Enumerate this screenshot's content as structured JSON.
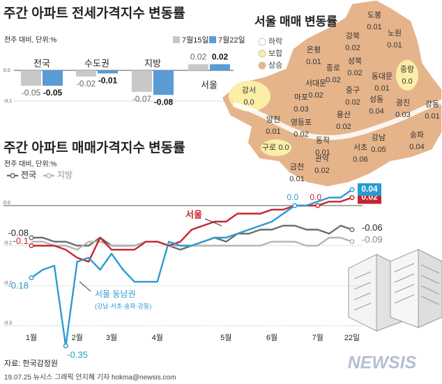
{
  "chart_data": [
    {
      "type": "bar",
      "title": "주간 아파트 전세가격지수 변동률",
      "subtitle": "전주 대비, 단위:%",
      "categories": [
        "전국",
        "수도권",
        "지방",
        "서울"
      ],
      "series": [
        {
          "name": "7월15일",
          "color": "#c8c8c8",
          "values": [
            -0.05,
            -0.02,
            -0.07,
            0.02
          ]
        },
        {
          "name": "7월22일",
          "color": "#5b9bd5",
          "values": [
            -0.05,
            -0.01,
            -0.08,
            0.02
          ]
        }
      ],
      "ylim": [
        -0.1,
        0.02
      ],
      "yticks": [
        {
          "value": 0,
          "label": "0.0"
        },
        -0.1
      ]
    },
    {
      "type": "line",
      "title": "주간 아파트 매매가격지수 변동률",
      "subtitle": "전주 대비, 단위:%",
      "categories": [
        "1월",
        null,
        null,
        null,
        "2월",
        null,
        null,
        "3월",
        null,
        null,
        null,
        "4월",
        null,
        null,
        null,
        null,
        null,
        "5월",
        null,
        null,
        null,
        "6월",
        null,
        null,
        null,
        "7월",
        null,
        null,
        "22일"
      ],
      "series": [
        {
          "name": "전국",
          "color": "#6d6d6d",
          "legend": true,
          "values": [
            -0.08,
            -0.08,
            -0.09,
            -0.09,
            -0.1,
            -0.1,
            -0.08,
            -0.1,
            -0.1,
            -0.1,
            -0.09,
            -0.09,
            -0.1,
            -0.11,
            -0.1,
            -0.09,
            -0.08,
            -0.09,
            -0.07,
            -0.07,
            -0.06,
            -0.06,
            -0.05,
            -0.05,
            -0.06,
            -0.06,
            -0.07,
            -0.05,
            -0.06
          ],
          "value_labels": [
            "-0.08",
            null,
            null,
            null,
            null,
            null,
            null,
            null,
            null,
            null,
            null,
            null,
            null,
            null,
            null,
            null,
            null,
            null,
            null,
            null,
            null,
            null,
            null,
            null,
            null,
            null,
            null,
            null,
            "-0.06"
          ]
        },
        {
          "name": "지방",
          "color": "#b5b5b5",
          "legend": true,
          "values": [
            -0.09,
            -0.09,
            -0.1,
            -0.1,
            -0.11,
            -0.09,
            -0.09,
            -0.1,
            -0.1,
            -0.1,
            -0.09,
            -0.09,
            -0.1,
            -0.1,
            -0.1,
            -0.1,
            -0.1,
            -0.1,
            -0.1,
            -0.1,
            -0.1,
            -0.09,
            -0.09,
            -0.09,
            -0.1,
            -0.1,
            -0.08,
            -0.08,
            -0.09
          ],
          "value_labels": [
            null,
            null,
            null,
            null,
            null,
            null,
            null,
            null,
            null,
            null,
            null,
            null,
            null,
            null,
            null,
            null,
            null,
            null,
            null,
            null,
            null,
            null,
            null,
            null,
            null,
            null,
            null,
            null,
            "-0.09"
          ]
        },
        {
          "name": "서울",
          "color": "#c4262e",
          "end_label_style": "box",
          "values": [
            -0.1,
            -0.1,
            -0.1,
            -0.11,
            -0.13,
            -0.14,
            -0.08,
            -0.11,
            -0.11,
            -0.11,
            -0.09,
            -0.09,
            -0.1,
            -0.09,
            -0.06,
            -0.05,
            -0.04,
            -0.04,
            -0.02,
            -0.02,
            -0.02,
            -0.01,
            -0.01,
            0.0,
            0.0,
            0.0,
            0.01,
            0.01,
            0.02
          ],
          "value_labels": [
            "-0.1",
            null,
            null,
            null,
            null,
            null,
            null,
            null,
            null,
            null,
            null,
            null,
            null,
            null,
            null,
            null,
            null,
            null,
            null,
            null,
            null,
            null,
            null,
            null,
            null,
            "0.0",
            null,
            null,
            "0.02"
          ]
        },
        {
          "name": "서울 동남권",
          "note": "(강남·서초·송파·강동)",
          "color": "#2a9bd1",
          "end_label_style": "box",
          "values": [
            -0.18,
            -0.16,
            -0.15,
            -0.35,
            -0.14,
            -0.13,
            -0.16,
            -0.12,
            -0.16,
            -0.19,
            -0.19,
            -0.19,
            -0.09,
            -0.1,
            -0.1,
            -0.09,
            -0.08,
            -0.08,
            -0.07,
            -0.06,
            -0.05,
            -0.04,
            -0.02,
            0.0,
            0.0,
            0.01,
            0.02,
            0.02,
            0.04
          ],
          "value_labels": [
            "-0.18",
            null,
            null,
            "-0.35",
            null,
            null,
            null,
            null,
            null,
            null,
            null,
            null,
            null,
            null,
            null,
            null,
            null,
            null,
            null,
            null,
            null,
            null,
            null,
            "0.0",
            null,
            null,
            null,
            null,
            "0.04"
          ]
        }
      ],
      "ylim": [
        -0.36,
        0.06
      ],
      "yticks": [
        {
          "value": 0,
          "label": "0.0"
        },
        -0.1,
        -0.2,
        -0.3
      ]
    }
  ],
  "map": {
    "title": "서울 매매 변동률",
    "legend": [
      {
        "label": "하락",
        "color": "#ffffff"
      },
      {
        "label": "보합",
        "color": "#fbeea6"
      },
      {
        "label": "상승",
        "color": "#e6b48b"
      }
    ],
    "districts": [
      {
        "name": "도봉",
        "value": "0.01"
      },
      {
        "name": "노원",
        "value": "0.01"
      },
      {
        "name": "강북",
        "value": "0.02"
      },
      {
        "name": "은평",
        "value": "0.01"
      },
      {
        "name": "성북",
        "value": "0.02"
      },
      {
        "name": "중랑",
        "value": "0.0"
      },
      {
        "name": "종로",
        "value": "0.02"
      },
      {
        "name": "동대문",
        "value": "0.01"
      },
      {
        "name": "서대문",
        "value": "0.02"
      },
      {
        "name": "마포",
        "value": "0.03"
      },
      {
        "name": "중구",
        "value": "0.02"
      },
      {
        "name": "성동",
        "value": "0.04"
      },
      {
        "name": "광진",
        "value": "0.03"
      },
      {
        "name": "강동",
        "value": "0.01"
      },
      {
        "name": "용산",
        "value": "0.02"
      },
      {
        "name": "강서",
        "value": "0.0"
      },
      {
        "name": "양천",
        "value": "0.01"
      },
      {
        "name": "영등포",
        "value": "0.02"
      },
      {
        "name": "구로",
        "value": "0.0"
      },
      {
        "name": "동작",
        "value": "0.01"
      },
      {
        "name": "서초",
        "value": "0.06"
      },
      {
        "name": "강남",
        "value": "0.05"
      },
      {
        "name": "송파",
        "value": "0.04"
      },
      {
        "name": "금천",
        "value": "0.01"
      },
      {
        "name": "관악",
        "value": "0.02"
      }
    ]
  },
  "footer": {
    "source": "자료: 한국감정원",
    "credit": "19.07.25 뉴시스 그래픽 안지혜 기자 hokma@newsis.com",
    "logo": "NEWSIS"
  }
}
